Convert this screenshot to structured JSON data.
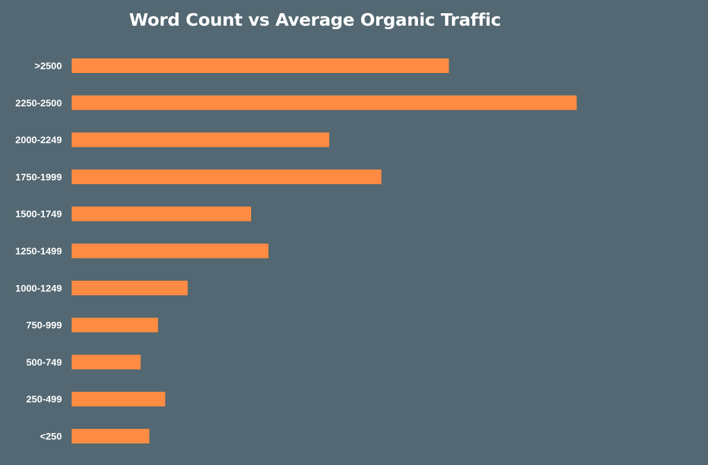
{
  "colors": {
    "background": "#536872",
    "bar": "#FF8C42",
    "text": "#ffffff"
  },
  "chart_data": {
    "type": "bar",
    "orientation": "horizontal",
    "title": "Word Count vs Average Organic Traffic",
    "xlabel": "",
    "ylabel": "",
    "grid": false,
    "legend": "none",
    "categories": [
      ">2500",
      "2250-2500",
      "2000-2249",
      "1750-1999",
      "1500-1749",
      "1250-1499",
      "1000-1249",
      "750-999",
      "500-749",
      "250-499",
      "<250"
    ],
    "values": [
      73.8,
      98.8,
      50.4,
      60.6,
      35.1,
      38.5,
      22.7,
      16.9,
      13.5,
      18.3,
      15.2
    ],
    "xlim": [
      0,
      100
    ]
  }
}
